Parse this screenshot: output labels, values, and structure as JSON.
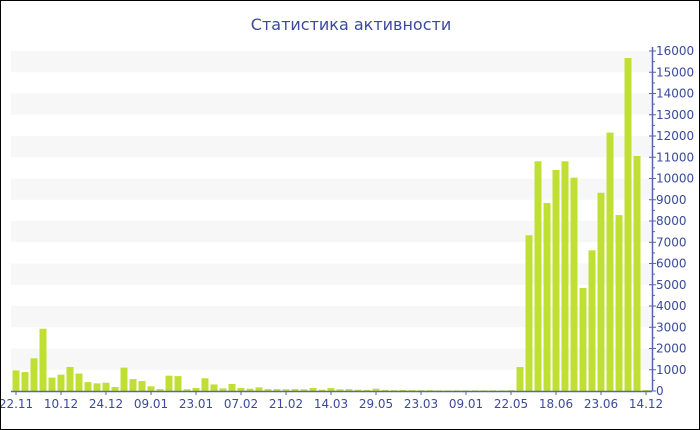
{
  "chart_data": {
    "type": "bar",
    "title": "Статистика активности",
    "x_tick_labels": [
      "22.11",
      "10.12",
      "24.12",
      "09.01",
      "23.01",
      "07.02",
      "21.02",
      "14.03",
      "29.05",
      "23.03",
      "09.01",
      "22.05",
      "18.06",
      "23.06",
      "14.12"
    ],
    "x_tick_every": 5,
    "values": [
      970,
      890,
      1540,
      2930,
      630,
      770,
      1130,
      820,
      420,
      360,
      390,
      190,
      1100,
      560,
      470,
      220,
      90,
      720,
      700,
      80,
      140,
      600,
      310,
      125,
      330,
      140,
      110,
      170,
      90,
      90,
      80,
      90,
      80,
      140,
      60,
      140,
      80,
      90,
      60,
      50,
      110,
      50,
      40,
      50,
      40,
      40,
      40,
      30,
      30,
      30,
      30,
      30,
      30,
      30,
      30,
      40,
      1130,
      7330,
      10810,
      8850,
      10400,
      10810,
      10040,
      4850,
      6620,
      9330,
      12160,
      8280,
      15670,
      11060,
      50
    ],
    "ylim": [
      0,
      16000
    ],
    "y_tick_step": 1000,
    "y_axis_position": "right",
    "grid": "alternating horizontal bands",
    "bar_color": "#bfe033",
    "axis_color": "#5566aa",
    "band_color": "#f7f7f7"
  }
}
